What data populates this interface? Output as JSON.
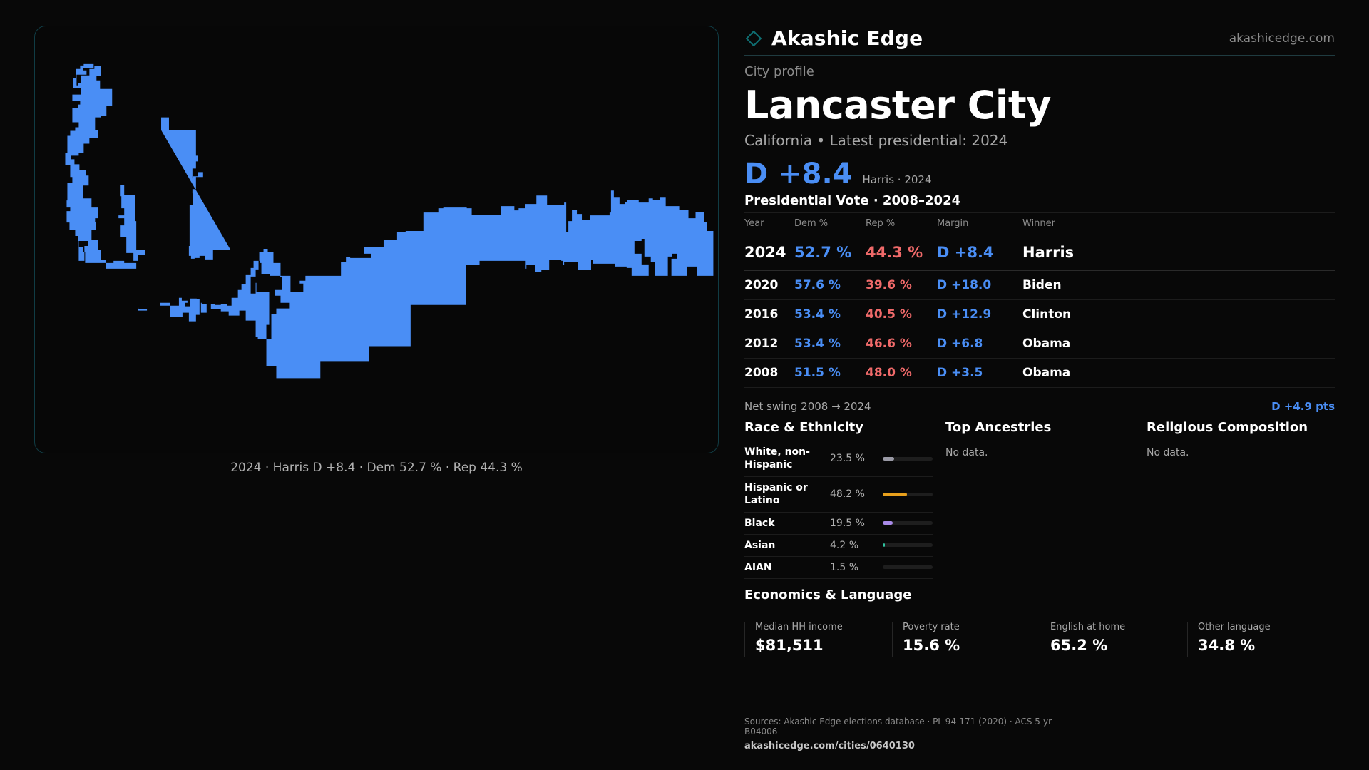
{
  "brand": {
    "name": "Akashic Edge",
    "url": "akashicedge.com",
    "accent": "#0f6f73"
  },
  "map": {
    "caption": "2024 · Harris D +8.4 · Dem 52.7 % · Rep 44.3 %",
    "fill_color": "#4a8ef5"
  },
  "profile": {
    "label": "City profile",
    "title": "Lancaster City",
    "subtitle": "California • Latest presidential: 2024",
    "headline_margin": "D +8.4",
    "headline_note": "Harris · 2024"
  },
  "vote": {
    "title": "Presidential Vote · 2008–2024",
    "headers": [
      "Year",
      "Dem %",
      "Rep %",
      "Margin",
      "Winner"
    ],
    "rows": [
      {
        "year": "2024",
        "dem": "52.7 %",
        "rep": "44.3 %",
        "margin": "D +8.4",
        "winner": "Harris"
      },
      {
        "year": "2020",
        "dem": "57.6 %",
        "rep": "39.6 %",
        "margin": "D +18.0",
        "winner": "Biden"
      },
      {
        "year": "2016",
        "dem": "53.4 %",
        "rep": "40.5 %",
        "margin": "D +12.9",
        "winner": "Clinton"
      },
      {
        "year": "2012",
        "dem": "53.4 %",
        "rep": "46.6 %",
        "margin": "D +6.8",
        "winner": "Obama"
      },
      {
        "year": "2008",
        "dem": "51.5 %",
        "rep": "48.0 %",
        "margin": "D +3.5",
        "winner": "Obama"
      }
    ],
    "swing_label": "Net swing 2008 → 2024",
    "swing_value": "D +4.9 pts"
  },
  "race": {
    "title": "Race & Ethnicity",
    "rows": [
      {
        "label": "White, non-Hispanic",
        "pct": "23.5 %",
        "value": 23.5,
        "color": "#9a9aa6"
      },
      {
        "label": "Hispanic or Latino",
        "pct": "48.2 %",
        "value": 48.2,
        "color": "#e8a01c"
      },
      {
        "label": "Black",
        "pct": "19.5 %",
        "value": 19.5,
        "color": "#a98ae8"
      },
      {
        "label": "Asian",
        "pct": "4.2 %",
        "value": 4.2,
        "color": "#2ec4a0"
      },
      {
        "label": "AIAN",
        "pct": "1.5 %",
        "value": 1.5,
        "color": "#e8783c"
      }
    ]
  },
  "ancestries": {
    "title": "Top Ancestries",
    "empty": "No data."
  },
  "religion": {
    "title": "Religious Composition",
    "empty": "No data."
  },
  "econ": {
    "title": "Economics & Language",
    "items": [
      {
        "label": "Median HH income",
        "value": "$81,511"
      },
      {
        "label": "Poverty rate",
        "value": "15.6 %"
      },
      {
        "label": "English at home",
        "value": "65.2 %"
      },
      {
        "label": "Other language",
        "value": "34.8 %"
      }
    ]
  },
  "footer": {
    "sources": "Sources: Akashic Edge elections database · PL 94-171 (2020) · ACS 5-yr B04006",
    "url": "akashicedge.com/cities/0640130"
  }
}
